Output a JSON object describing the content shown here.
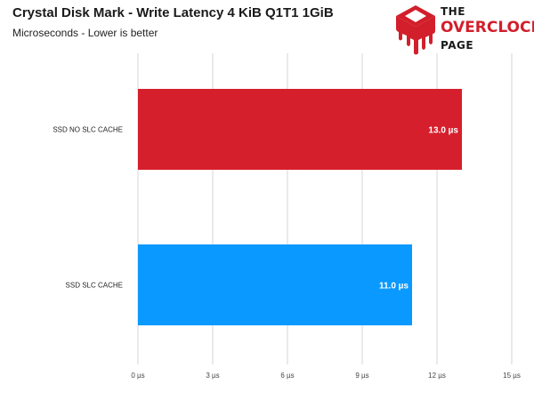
{
  "header": {
    "title": "Crystal Disk Mark - Write Latency 4 KiB Q1T1 1GiB",
    "subtitle": "Microseconds - Lower is better"
  },
  "logo": {
    "line1": "THE",
    "line2": "OVERCLOCK",
    "line3": "PAGE",
    "colors": {
      "red": "#d21f2b",
      "dark": "#1a1a1a"
    }
  },
  "chart_data": {
    "type": "bar",
    "orientation": "horizontal",
    "categories": [
      "SSD NO SLC CACHE",
      "SSD SLC CACHE"
    ],
    "values": [
      13.0,
      11.0
    ],
    "value_labels": [
      "13.0 µs",
      "11.0 µs"
    ],
    "colors": [
      "#d61f2c",
      "#0a99ff"
    ],
    "xlim": [
      0,
      15
    ],
    "x_ticks": [
      0,
      3,
      6,
      9,
      12,
      15
    ],
    "x_tick_labels": [
      "0 µs",
      "3 µs",
      "6 µs",
      "9 µs",
      "12 µs",
      "15 µs"
    ],
    "grid": true,
    "legend": "none"
  }
}
